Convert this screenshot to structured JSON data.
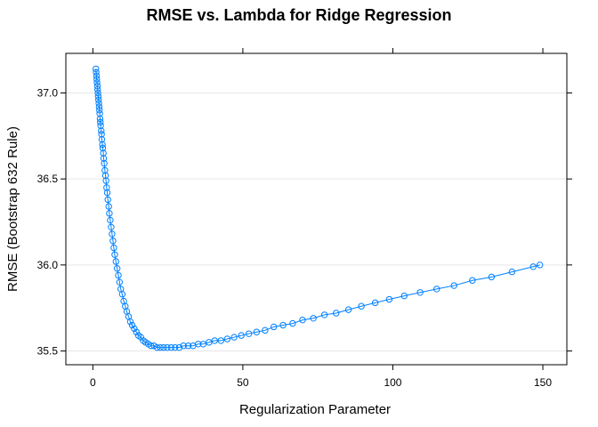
{
  "chart_data": {
    "type": "line",
    "title": "RMSE vs. Lambda for Ridge Regression",
    "xlabel": "Regularization Parameter",
    "ylabel": "RMSE (Bootstrap 632 Rule)",
    "xlim": [
      -9,
      158
    ],
    "ylim": [
      35.42,
      37.23
    ],
    "xticks": [
      0,
      50,
      100,
      150
    ],
    "yticks": [
      35.5,
      36.0,
      36.5,
      37.0
    ],
    "xtick_labels": [
      "0",
      "50",
      "100",
      "150"
    ],
    "ytick_labels": [
      "35.5",
      "36.0",
      "36.5",
      "37.0"
    ],
    "grid": "horizontal",
    "legend": "none",
    "series": [
      {
        "color": "#0080ff",
        "marker": "open-circle",
        "x": [
          1.0,
          1.1,
          1.2,
          1.3,
          1.4,
          1.5,
          1.6,
          1.7,
          1.8,
          1.9,
          2.0,
          2.1,
          2.2,
          2.3,
          2.4,
          2.5,
          2.6,
          2.8,
          2.9,
          3.0,
          3.2,
          3.3,
          3.5,
          3.6,
          3.8,
          4.0,
          4.2,
          4.4,
          4.6,
          4.8,
          5.0,
          5.3,
          5.5,
          5.8,
          6.1,
          6.4,
          6.7,
          7.0,
          7.3,
          7.7,
          8.1,
          8.5,
          8.9,
          9.3,
          9.8,
          10.3,
          10.8,
          11.3,
          11.9,
          12.5,
          13.1,
          13.8,
          14.5,
          15.2,
          16.0,
          16.8,
          17.6,
          18.5,
          19.4,
          20.4,
          21.4,
          22.5,
          23.6,
          24.8,
          26.1,
          27.4,
          28.8,
          30.2,
          31.8,
          33.4,
          35.1,
          36.8,
          38.7,
          40.6,
          42.7,
          44.8,
          47.1,
          49.5,
          52.0,
          54.6,
          57.4,
          60.3,
          63.4,
          66.6,
          69.9,
          73.5,
          77.2,
          81.1,
          85.2,
          89.5,
          94.1,
          98.8,
          103.8,
          109.1,
          114.6,
          120.4,
          126.5,
          132.9,
          139.7,
          146.8,
          149.0
        ],
        "y": [
          37.14,
          37.12,
          37.1,
          37.08,
          37.06,
          37.04,
          37.02,
          37.0,
          36.98,
          36.96,
          36.94,
          36.92,
          36.9,
          36.88,
          36.85,
          36.83,
          36.81,
          36.78,
          36.76,
          36.73,
          36.7,
          36.68,
          36.65,
          36.62,
          36.59,
          36.55,
          36.52,
          36.49,
          36.45,
          36.42,
          36.38,
          36.34,
          36.3,
          36.26,
          36.22,
          36.18,
          36.14,
          36.1,
          36.06,
          36.02,
          35.98,
          35.94,
          35.9,
          35.86,
          35.83,
          35.79,
          35.76,
          35.73,
          35.7,
          35.67,
          35.65,
          35.63,
          35.61,
          35.59,
          35.58,
          35.56,
          35.55,
          35.54,
          35.53,
          35.53,
          35.52,
          35.52,
          35.52,
          35.52,
          35.52,
          35.52,
          35.52,
          35.53,
          35.53,
          35.53,
          35.54,
          35.54,
          35.55,
          35.56,
          35.56,
          35.57,
          35.58,
          35.59,
          35.6,
          35.61,
          35.62,
          35.64,
          35.65,
          35.66,
          35.68,
          35.69,
          35.71,
          35.72,
          35.74,
          35.76,
          35.78,
          35.8,
          35.82,
          35.84,
          35.86,
          35.88,
          35.91,
          35.93,
          35.96,
          35.99,
          36.0
        ]
      }
    ]
  }
}
